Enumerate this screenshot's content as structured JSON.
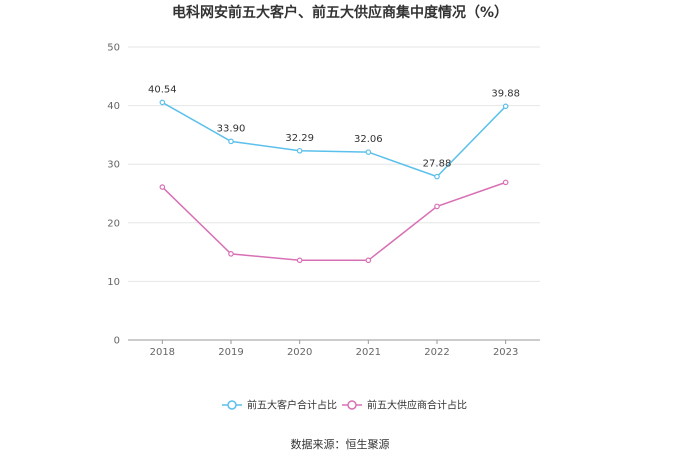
{
  "chart_data": {
    "type": "line",
    "title": "电科网安前五大客户、前五大供应商集中度情况（%）",
    "categories": [
      "2018",
      "2019",
      "2020",
      "2021",
      "2022",
      "2023"
    ],
    "ylim": [
      0,
      50
    ],
    "yticks": [
      "0",
      "10",
      "20",
      "30",
      "40",
      "50"
    ],
    "grid": true,
    "legend_position": "bottom",
    "series": [
      {
        "name": "前五大客户合计占比",
        "values": [
          40.54,
          33.9,
          32.29,
          32.06,
          27.88,
          39.88
        ],
        "labels": [
          "40.54",
          "33.90",
          "32.29",
          "32.06",
          "27.88",
          "39.88"
        ],
        "color": "#5bc0eb"
      },
      {
        "name": "前五大供应商合计占比",
        "values": [
          26.1,
          14.7,
          13.6,
          13.6,
          22.8,
          26.9
        ],
        "color": "#d770b5"
      }
    ],
    "source": "数据来源：恒生聚源"
  }
}
